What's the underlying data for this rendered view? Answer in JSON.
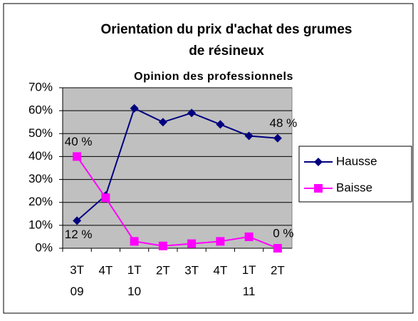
{
  "chart_data": {
    "type": "line",
    "title": "Orientation du prix d'achat des grumes\nde résineux",
    "subtitle": "Opinion des professionnels",
    "categories": [
      "3T\n09",
      "4T",
      "1T\n10",
      "2T",
      "3T",
      "4T",
      "1T\n11",
      "2T"
    ],
    "series": [
      {
        "name": "Hausse",
        "color": "#000080",
        "marker": "diamond",
        "values": [
          12,
          23,
          61,
          55,
          59,
          54,
          49,
          48
        ],
        "value_labels": [
          "12 %",
          null,
          null,
          null,
          null,
          null,
          null,
          "48 %"
        ]
      },
      {
        "name": "Baisse",
        "color": "#ff00ff",
        "marker": "square",
        "values": [
          40,
          22,
          3,
          1,
          2,
          3,
          5,
          0
        ],
        "value_labels": [
          "40 %",
          null,
          null,
          null,
          null,
          null,
          null,
          "0 %"
        ]
      }
    ],
    "ylim": [
      0,
      70
    ],
    "yticks": [
      {
        "value": 0,
        "label": "0%"
      },
      {
        "value": 10,
        "label": "10%"
      },
      {
        "value": 20,
        "label": "20%"
      },
      {
        "value": 30,
        "label": "30%"
      },
      {
        "value": 40,
        "label": "40%"
      },
      {
        "value": 50,
        "label": "50%"
      },
      {
        "value": 60,
        "label": "60%"
      },
      {
        "value": 70,
        "label": "70%"
      }
    ],
    "grid": true,
    "legend": "right",
    "plot_background": "#c0c0c0"
  }
}
